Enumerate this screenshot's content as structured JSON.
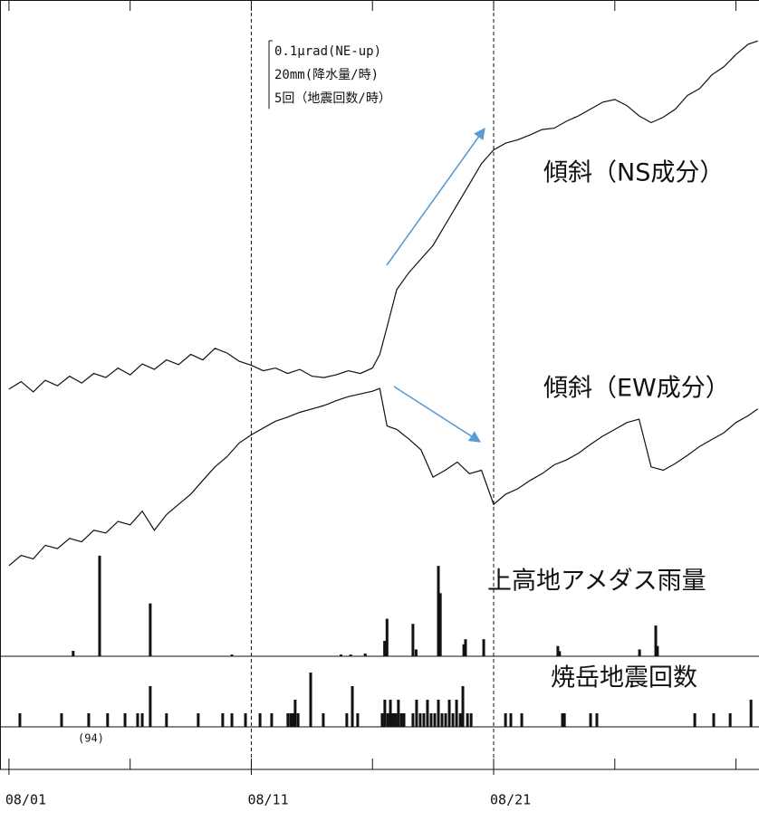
{
  "chart_data": [
    {
      "type": "line",
      "x": [
        0,
        0.5,
        1,
        1.5,
        2,
        2.5,
        3,
        3.5,
        4,
        4.5,
        5,
        5.5,
        6,
        6.5,
        7,
        7.5,
        8,
        8.5,
        9,
        9.5,
        10,
        10.5,
        11,
        11.5,
        12,
        12.5,
        13,
        13.5,
        14,
        14.5,
        15,
        15.3,
        15.6,
        16,
        16.5,
        17,
        17.5,
        18,
        18.5,
        19,
        19.5,
        20,
        20.5,
        21,
        21.5,
        22,
        22.5,
        23,
        23.5,
        24,
        24.5,
        25,
        25.5,
        26,
        26.5,
        27,
        27.5,
        28,
        28.5,
        29,
        29.5,
        30,
        30.5,
        30.9
      ],
      "xlim": [
        -0.37,
        30.95
      ],
      "ylim": [
        0,
        0.85
      ],
      "series": [
        {
          "name": "傾斜（NS成分）",
          "color": "#111111",
          "values": [
            0.279,
            0.29,
            0.275,
            0.292,
            0.284,
            0.298,
            0.288,
            0.302,
            0.296,
            0.31,
            0.3,
            0.316,
            0.308,
            0.322,
            0.315,
            0.33,
            0.322,
            0.339,
            0.332,
            0.32,
            0.314,
            0.306,
            0.31,
            0.302,
            0.308,
            0.298,
            0.296,
            0.3,
            0.306,
            0.302,
            0.31,
            0.33,
            0.37,
            0.425,
            0.45,
            0.47,
            0.49,
            0.52,
            0.55,
            0.58,
            0.61,
            0.63,
            0.64,
            0.645,
            0.652,
            0.66,
            0.662,
            0.672,
            0.68,
            0.69,
            0.7,
            0.704,
            0.695,
            0.68,
            0.67,
            0.678,
            0.69,
            0.71,
            0.72,
            0.74,
            0.752,
            0.77,
            0.785,
            0.79
          ]
        },
        {
          "name": "傾斜（EW成分）",
          "color": "#111111",
          "values": [
            0.02,
            0.035,
            0.03,
            0.05,
            0.045,
            0.06,
            0.055,
            0.072,
            0.068,
            0.085,
            0.08,
            0.1,
            0.072,
            0.095,
            0.11,
            0.125,
            0.145,
            0.165,
            0.18,
            0.2,
            0.212,
            0.222,
            0.232,
            0.238,
            0.245,
            0.25,
            0.255,
            0.262,
            0.268,
            0.272,
            0.276,
            0.28,
            0.225,
            0.22,
            0.206,
            0.19,
            0.15,
            0.16,
            0.172,
            0.155,
            0.16,
            0.11,
            0.125,
            0.133,
            0.145,
            0.155,
            0.168,
            0.175,
            0.185,
            0.198,
            0.21,
            0.22,
            0.23,
            0.235,
            0.165,
            0.16,
            0.17,
            0.182,
            0.195,
            0.205,
            0.215,
            0.23,
            0.24,
            0.25
          ]
        }
      ],
      "scale_bar_value": 0.1,
      "annotations": [
        "0.1μrad(NE-up)",
        "20mm(降水量/時)",
        "5回（地震回数/時）"
      ]
    },
    {
      "type": "bar",
      "title": "上高地アメダス雨量",
      "color": "#111111",
      "x": [
        2.65,
        3.74,
        5.83,
        9.2,
        13.7,
        14.1,
        14.7,
        15.5,
        15.6,
        16.67,
        16.8,
        17.72,
        17.8,
        18.77,
        18.84,
        19.59,
        22.65,
        22.72,
        26.02,
        26.69,
        26.76
      ],
      "values": [
        1.6,
        29.5,
        15.5,
        0.5,
        0.5,
        0.5,
        0.8,
        4.5,
        11,
        9.5,
        2,
        26.5,
        18.5,
        3.5,
        5,
        5,
        3,
        1.5,
        2,
        9,
        3
      ],
      "xlim": [
        -0.37,
        30.95
      ],
      "ylim": [
        0,
        30
      ]
    },
    {
      "type": "bar",
      "title": "焼岳地震回数",
      "color": "#111111",
      "x": [
        0.45,
        2.17,
        3.29,
        4.07,
        4.79,
        5.31,
        5.5,
        5.83,
        6.5,
        7.81,
        8.82,
        9.2,
        9.76,
        10.36,
        10.84,
        11.51,
        11.63,
        11.74,
        11.81,
        11.93,
        12.45,
        12.97,
        13.94,
        14.17,
        14.39,
        15.4,
        15.51,
        15.63,
        15.74,
        15.85,
        15.96,
        16.07,
        16.19,
        16.3,
        16.67,
        16.82,
        16.97,
        17.12,
        17.27,
        17.42,
        17.57,
        17.72,
        17.87,
        18.02,
        18.17,
        18.32,
        18.47,
        18.62,
        18.73,
        18.92,
        19.07,
        20.49,
        20.71,
        21.16,
        22.84,
        22.92,
        24.0,
        24.26,
        28.3,
        29.08,
        29.76,
        30.62
      ],
      "values": [
        1,
        1,
        1,
        1,
        1,
        1,
        1,
        3,
        1,
        1,
        1,
        1,
        1,
        1,
        1,
        1,
        1,
        1,
        2,
        1,
        4,
        1,
        1,
        3,
        1,
        1,
        2,
        1,
        2,
        1,
        1,
        2,
        1,
        1,
        1,
        2,
        1,
        1,
        2,
        1,
        1,
        2,
        1,
        1,
        2,
        1,
        2,
        1,
        3,
        1,
        1,
        1,
        1,
        1,
        1,
        1,
        1,
        1,
        1,
        1,
        1,
        2
      ],
      "xlim": [
        -0.37,
        30.95
      ],
      "ylim": [
        0,
        5
      ],
      "annotations": [
        "(94)"
      ],
      "xticks": [
        {
          "value": 0,
          "label": "08/01"
        },
        {
          "value": 10,
          "label": "08/11"
        },
        {
          "value": 20,
          "label": "08/21"
        }
      ],
      "minor_xticks": [
        0,
        5,
        10,
        15,
        20,
        25,
        30
      ],
      "marker_days": [
        10,
        20
      ]
    }
  ]
}
